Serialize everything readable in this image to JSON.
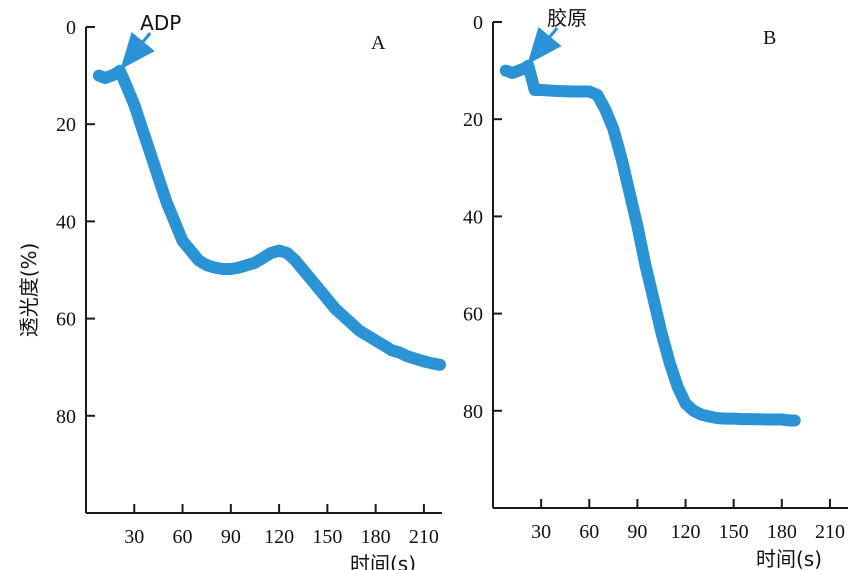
{
  "ylabel": "透光度(%)",
  "xlabel": "时间(s)",
  "colors": {
    "trace": "#2a93d5",
    "axis": "#1a1a1a"
  },
  "chart_data": [
    {
      "type": "line",
      "panel": "A",
      "annotation": "ADP",
      "annotation_x": 20,
      "xticks": [
        30,
        60,
        90,
        120,
        150,
        180,
        210
      ],
      "yticks": [
        0,
        20,
        40,
        60,
        80
      ],
      "xlim": [
        0,
        220
      ],
      "ylim": [
        0,
        100
      ],
      "y_inverted": true,
      "xlabel": "时间(s)",
      "ylabel": "透光度(%)",
      "series": [
        {
          "x": [
            8,
            12,
            16,
            19,
            21,
            25,
            30,
            35,
            40,
            45,
            50,
            55,
            60,
            65,
            70,
            75,
            80,
            85,
            90,
            95,
            100,
            105,
            110,
            115,
            120,
            125,
            130,
            135,
            140,
            145,
            150,
            155,
            160,
            165,
            170,
            175,
            180,
            185,
            190,
            195,
            200,
            205,
            210,
            215,
            220
          ],
          "y": [
            10,
            10.5,
            10,
            9.5,
            9,
            12,
            16,
            21,
            26,
            31,
            36,
            40,
            44,
            46,
            48,
            49,
            49.5,
            49.8,
            49.8,
            49.5,
            49,
            48.5,
            47.5,
            46.5,
            46,
            46.5,
            48,
            50,
            52,
            54,
            56,
            58,
            59.5,
            61,
            62.5,
            63.5,
            64.5,
            65.5,
            66.5,
            67,
            67.8,
            68.3,
            68.8,
            69.2,
            69.5
          ]
        }
      ]
    },
    {
      "type": "line",
      "panel": "B",
      "annotation": "胶原",
      "annotation_x": 20,
      "xticks": [
        30,
        60,
        90,
        120,
        150,
        180,
        210
      ],
      "yticks": [
        0,
        20,
        40,
        60,
        80
      ],
      "xlim": [
        0,
        220
      ],
      "ylim": [
        0,
        100
      ],
      "y_inverted": true,
      "xlabel": "时间(s)",
      "ylabel": "",
      "series": [
        {
          "x": [
            8,
            12,
            16,
            20,
            22,
            26,
            30,
            40,
            50,
            60,
            65,
            70,
            75,
            80,
            85,
            90,
            95,
            100,
            105,
            110,
            115,
            120,
            125,
            130,
            135,
            140,
            145,
            150,
            155,
            160,
            170,
            180,
            185,
            188
          ],
          "y": [
            10,
            10.5,
            10,
            9.5,
            9,
            14,
            14,
            14.2,
            14.3,
            14.3,
            15,
            18,
            22,
            28,
            35,
            42,
            50,
            57,
            64,
            70,
            75,
            78.5,
            80,
            80.8,
            81.2,
            81.5,
            81.6,
            81.6,
            81.7,
            81.7,
            81.8,
            81.8,
            82,
            82
          ]
        }
      ]
    }
  ]
}
